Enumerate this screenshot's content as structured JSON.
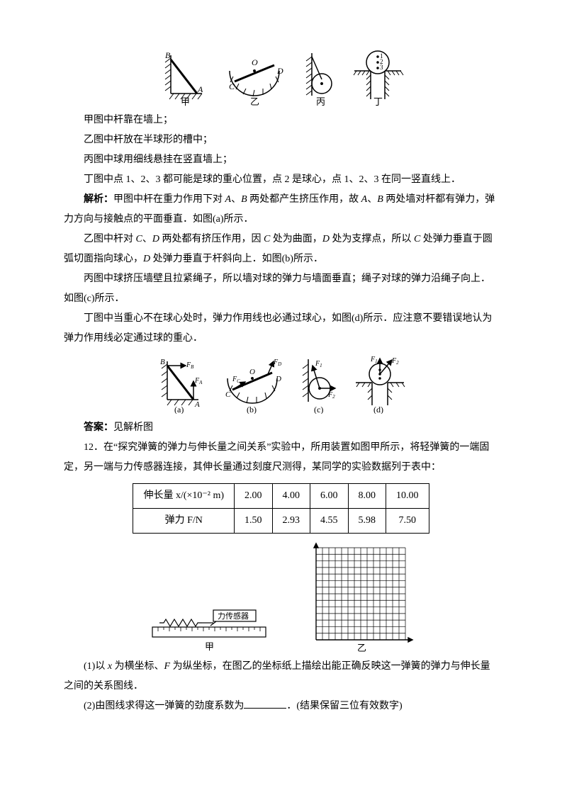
{
  "fig1": {
    "labels": {
      "A": "A",
      "B": "B",
      "C": "C",
      "D": "D",
      "O": "O"
    },
    "captions": {
      "jia": "甲",
      "yi": "乙",
      "bing": "丙",
      "ding": "丁"
    },
    "stroke": "#000000",
    "hatch": "#000000",
    "bg": "#ffffff"
  },
  "t1": "甲图中杆靠在墙上；",
  "t2": "乙图中杆放在半球形的槽中；",
  "t3": "丙图中球用细线悬挂在竖直墙上；",
  "t4": "丁图中点 1、2、3 都可能是球的重心位置，点 2 是球心，点 1、2、3 在同一竖直线上．",
  "t5a": "解析：",
  "t5b": "甲图中杆在重力作用下对 ",
  "t5c": "A",
  "t5d": "、",
  "t5e": "B",
  "t5f": " 两处都产生挤压作用，故 ",
  "t5g": "A",
  "t5h": "、",
  "t5i": "B",
  "t5j": " 两处墙对杆都有弹力，弹力方向与接触点的平面垂直．如图(a)所示．",
  "t6a": "乙图中杆对 ",
  "t6b": "C",
  "t6c": "、",
  "t6d": "D",
  "t6e": " 两处都有挤压作用，因 ",
  "t6f": "C",
  "t6g": " 处为曲面，",
  "t6h": "D",
  "t6i": " 处为支撑点，所以 ",
  "t6j": "C",
  "t6k": " 处弹力垂直于圆弧切面指向球心，",
  "t6l": "D",
  "t6m": " 处弹力垂直于杆斜向上．如图(b)所示．",
  "t7": "丙图中球挤压墙壁且拉紧绳子，所以墙对球的弹力与墙面垂直；绳子对球的弹力沿绳子向上．如图(c)所示．",
  "t8": "丁图中当重心不在球心处时，弹力作用线也必通过球心，如图(d)所示．应注意不要错误地认为弹力作用线必定通过球的重心．",
  "fig2": {
    "labels": {
      "A": "A",
      "B": "B",
      "C": "C",
      "D": "D",
      "O": "O",
      "FA": "F_A",
      "FB": "F_B",
      "FC": "F_C",
      "FD": "F_D",
      "F1": "F₁",
      "F2": "F₂"
    },
    "captions": {
      "a": "(a)",
      "b": "(b)",
      "c": "(c)",
      "d": "(d)"
    },
    "arrow": "#000000"
  },
  "ans_label": "答案：",
  "ans_text": "见解析图",
  "q12a": "12．在“探究弹簧的弹力与伸长量之间关系”实验中，所用装置如图甲所示，将轻弹簧的一端固定，另一端与力传感器连接，其伸长量通过刻度尺测得，某同学的实验数据列于表中：",
  "table": {
    "head": "伸长量 x/(×10⁻² m)",
    "row2": "弹力 F/N",
    "cols": [
      "2.00",
      "4.00",
      "6.00",
      "8.00",
      "10.00"
    ],
    "vals": [
      "1.50",
      "2.93",
      "4.55",
      "5.98",
      "7.50"
    ],
    "border": "#000000"
  },
  "device": {
    "label": "力传感器",
    "cap_jia": "甲",
    "cap_yi": "乙",
    "grid_color": "#000000",
    "grid_rows": 14,
    "grid_cols": 14
  },
  "q12_1a": "(1)以 ",
  "q12_1b": "x",
  "q12_1c": " 为横坐标、",
  "q12_1d": "F",
  "q12_1e": " 为纵坐标，在图乙的坐标纸上描绘出能正确反映这一弹簧的弹力与伸长量之间的关系图线．",
  "q12_2a": "(2)由图线求得这一弹簧的劲度系数为",
  "q12_2b": "．(结果保留三位有效数字)"
}
